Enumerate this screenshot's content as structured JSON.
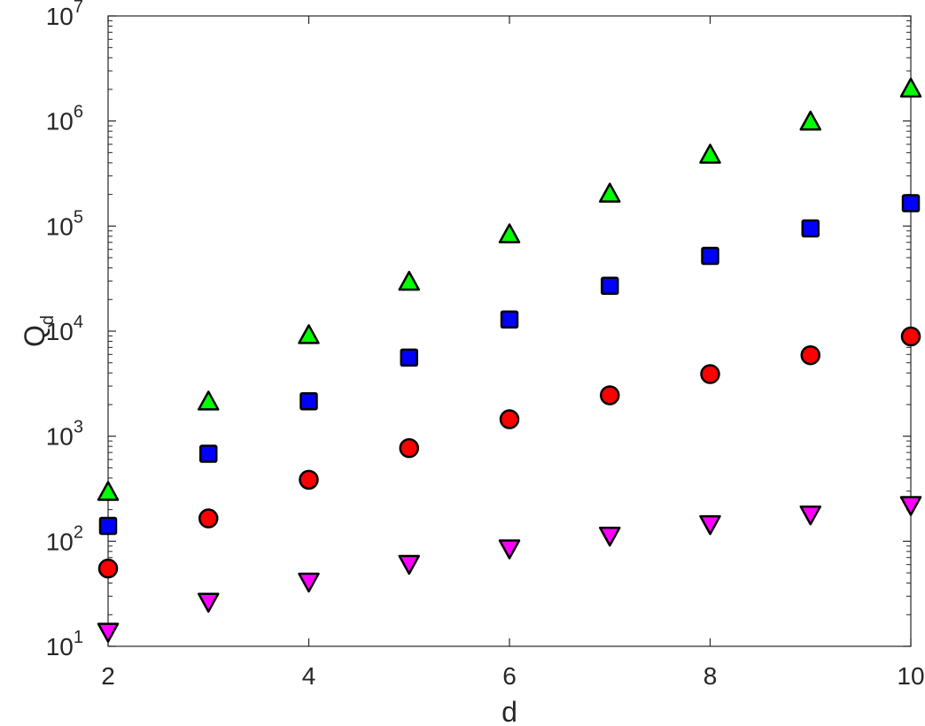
{
  "chart_data": {
    "type": "scatter",
    "title": "",
    "xlabel": "d",
    "ylabel": {
      "main": "Q",
      "subscript": "d"
    },
    "xlim": [
      2,
      10
    ],
    "ylim": [
      10,
      10000000
    ],
    "yscale": "log",
    "xticks": [
      "2",
      "4",
      "6",
      "8",
      "10"
    ],
    "yticks": [
      {
        "base": "10",
        "exp": "1"
      },
      {
        "base": "10",
        "exp": "2"
      },
      {
        "base": "10",
        "exp": "3"
      },
      {
        "base": "10",
        "exp": "4"
      },
      {
        "base": "10",
        "exp": "5"
      },
      {
        "base": "10",
        "exp": "6"
      },
      {
        "base": "10",
        "exp": "7"
      }
    ],
    "grid": false,
    "legend": "none",
    "x": [
      2,
      3,
      4,
      5,
      6,
      7,
      8,
      9,
      10
    ],
    "series": [
      {
        "marker": "triangle-up",
        "color": "#00ff00",
        "values": [
          290,
          2100,
          9000,
          29000,
          82000,
          200000,
          470000,
          970000,
          2000000
        ]
      },
      {
        "marker": "square",
        "color": "#0000ff",
        "values": [
          140,
          680,
          2150,
          5600,
          12900,
          27000,
          52000,
          95000,
          165000
        ]
      },
      {
        "marker": "circle",
        "color": "#ff0000",
        "values": [
          55,
          165,
          385,
          770,
          1450,
          2450,
          3900,
          5900,
          8900
        ]
      },
      {
        "marker": "triangle-down",
        "color": "#ff00ff",
        "values": [
          14,
          27,
          42,
          62,
          87,
          115,
          148,
          183,
          225
        ]
      }
    ]
  }
}
